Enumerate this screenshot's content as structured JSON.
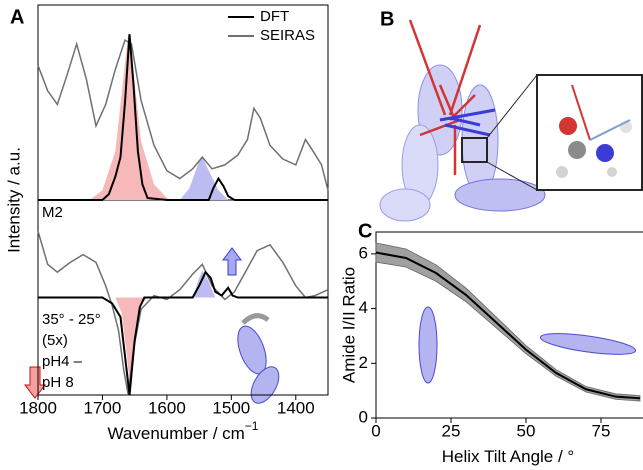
{
  "panel_labels": [
    "A",
    "B",
    "C"
  ],
  "chart_data": [
    {
      "type": "line",
      "xlim": [
        1800,
        1350
      ],
      "ylim": [
        0,
        100
      ],
      "y_label": "Intensity / a.u.",
      "legend": "upper right",
      "series": [
        {
          "style": "area",
          "color": "#f6b8b8",
          "x": [
            1720,
            1700,
            1680,
            1670,
            1660,
            1650,
            1640,
            1620,
            1600,
            1590
          ],
          "values": [
            0,
            5,
            25,
            55,
            85,
            60,
            30,
            8,
            1,
            0
          ]
        },
        {
          "style": "area",
          "color": "#bcbcf2",
          "x": [
            1580,
            1565,
            1550,
            1545,
            1535,
            1520,
            1505
          ],
          "values": [
            0,
            6,
            20,
            22,
            15,
            5,
            0
          ]
        },
        {
          "name": "SEIRAS",
          "style": "line",
          "color": "#707070",
          "x": [
            1800,
            1785,
            1770,
            1755,
            1740,
            1725,
            1710,
            1695,
            1680,
            1665,
            1655,
            1640,
            1620,
            1600,
            1580,
            1560,
            1545,
            1530,
            1510,
            1490,
            1475,
            1465,
            1455,
            1440,
            1420,
            1400,
            1385,
            1375,
            1360,
            1350
          ],
          "values": [
            69,
            56,
            49,
            64,
            80,
            62,
            38,
            49,
            67,
            82,
            80,
            51,
            28,
            15,
            11,
            16,
            22,
            16,
            18,
            23,
            31,
            47,
            42,
            28,
            21,
            18,
            31,
            26,
            18,
            5
          ]
        },
        {
          "name": "DFT",
          "style": "line",
          "color": "#000000",
          "x": [
            1800,
            1700,
            1690,
            1680,
            1672,
            1665,
            1658,
            1652,
            1645,
            1638,
            1630,
            1600,
            1535,
            1528,
            1520,
            1512,
            1505,
            1495,
            1350
          ],
          "values": [
            0,
            0,
            3,
            12,
            22,
            50,
            85,
            60,
            25,
            8,
            1,
            0,
            0,
            6,
            11,
            7,
            2,
            0,
            0
          ]
        }
      ]
    },
    {
      "type": "line",
      "xlim": [
        1800,
        1350
      ],
      "ylim": [
        -50,
        50
      ],
      "xticks": [
        1800,
        1700,
        1600,
        1500,
        1400
      ],
      "x_label": "Wavenumber / cm",
      "x_label_sup": "−1",
      "label": "M2",
      "annotations": [
        {
          "text": "35° - 25°",
          "color": "#000000"
        },
        {
          "text": "(5x)",
          "color": "#000000"
        },
        {
          "text": "pH4 –",
          "color": "#8a8a8a"
        },
        {
          "text": "pH 8",
          "color": "#8a8a8a"
        }
      ],
      "series": [
        {
          "style": "area",
          "color": "#f6b8b8",
          "x": [
            1680,
            1670,
            1662,
            1656,
            1650,
            1640,
            1630
          ],
          "values": [
            0,
            -8,
            -30,
            -50,
            -25,
            -4,
            0
          ]
        },
        {
          "style": "area",
          "color": "#bcbcf2",
          "x": [
            1560,
            1550,
            1545,
            1535,
            1525
          ],
          "values": [
            0,
            10,
            14,
            8,
            0
          ]
        },
        {
          "style": "line",
          "color": "#707070",
          "x": [
            1800,
            1785,
            1770,
            1750,
            1730,
            1710,
            1695,
            1685,
            1675,
            1667,
            1660,
            1652,
            1640,
            1620,
            1600,
            1580,
            1560,
            1545,
            1530,
            1510,
            1495,
            1480,
            1460,
            1440,
            1420,
            1400,
            1385,
            1370,
            1350
          ],
          "values": [
            34,
            17,
            13,
            18,
            22,
            18,
            6,
            -4,
            -17,
            -37,
            -50,
            -27,
            -6,
            1,
            -1,
            4,
            12,
            17,
            6,
            -1,
            3,
            12,
            24,
            27,
            18,
            6,
            0,
            1,
            4
          ]
        },
        {
          "style": "line",
          "color": "#000000",
          "x": [
            1800,
            1700,
            1685,
            1672,
            1665,
            1658,
            1650,
            1642,
            1635,
            1560,
            1550,
            1540,
            1532,
            1525,
            1515,
            1505,
            1498,
            1490,
            1350
          ],
          "values": [
            0,
            0,
            -3,
            -10,
            -30,
            -50,
            -22,
            -5,
            0,
            0,
            6,
            13,
            10,
            3,
            1,
            5,
            1,
            0,
            0
          ]
        }
      ]
    },
    {
      "type": "line",
      "xlim": [
        0,
        88
      ],
      "ylim": [
        0,
        6.8
      ],
      "xticks": [
        0,
        25,
        50,
        75
      ],
      "yticks": [
        0,
        2,
        4,
        6
      ],
      "x_label": "Helix Tilt Angle / °",
      "y_label": "Amide I/II Ratio",
      "series": [
        {
          "style": "band",
          "color": "#a0a0a0",
          "x": [
            0,
            10,
            20,
            30,
            40,
            50,
            60,
            70,
            80,
            88
          ],
          "values": [
            5.7,
            5.52,
            5.0,
            4.25,
            3.3,
            2.35,
            1.53,
            0.95,
            0.68,
            0.62
          ],
          "upper": [
            6.4,
            6.18,
            5.6,
            4.75,
            3.7,
            2.65,
            1.77,
            1.15,
            0.88,
            0.82
          ]
        },
        {
          "style": "line",
          "color": "#000000",
          "x": [
            0,
            10,
            20,
            30,
            40,
            50,
            60,
            70,
            80,
            88
          ],
          "values": [
            6.05,
            5.85,
            5.3,
            4.5,
            3.5,
            2.5,
            1.65,
            1.05,
            0.78,
            0.72
          ]
        }
      ]
    }
  ]
}
